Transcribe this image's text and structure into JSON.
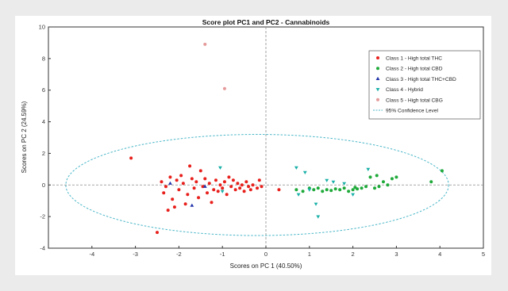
{
  "chart_data": {
    "type": "scatter",
    "title": "Score plot PC1 and PC2 - Cannabinoids",
    "xlabel": "Scores on PC 1 (40.50%)",
    "ylabel": "Scores on PC 2 (24.59%)",
    "xlim": [
      -5,
      5
    ],
    "ylim": [
      -4,
      10
    ],
    "xticks": [
      -4,
      -3,
      -2,
      -1,
      0,
      1,
      2,
      3,
      4,
      5
    ],
    "yticks": [
      -4,
      -2,
      0,
      2,
      4,
      6,
      8,
      10
    ],
    "grid": false,
    "legend_position": "top-right",
    "reference_lines": {
      "x": 0,
      "y": 0
    },
    "series": [
      {
        "name": "Class 1 - High total THC",
        "color": "#e8201c",
        "marker": "dot",
        "points": [
          [
            -3.1,
            1.7
          ],
          [
            -2.5,
            -3.0
          ],
          [
            -2.4,
            0.2
          ],
          [
            -2.35,
            -0.5
          ],
          [
            -2.3,
            -0.1
          ],
          [
            -2.25,
            -1.6
          ],
          [
            -2.2,
            0.5
          ],
          [
            -2.15,
            -0.9
          ],
          [
            -2.1,
            -1.4
          ],
          [
            -2.05,
            0.3
          ],
          [
            -2.0,
            -0.3
          ],
          [
            -1.95,
            0.6
          ],
          [
            -1.9,
            0.1
          ],
          [
            -1.85,
            -1.2
          ],
          [
            -1.8,
            -0.6
          ],
          [
            -1.75,
            1.2
          ],
          [
            -1.7,
            0.4
          ],
          [
            -1.65,
            -0.2
          ],
          [
            -1.6,
            0.2
          ],
          [
            -1.55,
            -0.8
          ],
          [
            -1.5,
            0.9
          ],
          [
            -1.45,
            -0.1
          ],
          [
            -1.4,
            0.4
          ],
          [
            -1.35,
            -0.5
          ],
          [
            -1.3,
            0.1
          ],
          [
            -1.25,
            -1.1
          ],
          [
            -1.2,
            -0.3
          ],
          [
            -1.15,
            0.3
          ],
          [
            -1.1,
            -0.4
          ],
          [
            -1.05,
            0.0
          ],
          [
            -1.0,
            -0.2
          ],
          [
            -0.95,
            0.2
          ],
          [
            -0.9,
            -0.6
          ],
          [
            -0.85,
            0.5
          ],
          [
            -0.8,
            -0.1
          ],
          [
            -0.75,
            0.3
          ],
          [
            -0.7,
            -0.3
          ],
          [
            -0.65,
            0.1
          ],
          [
            -0.6,
            -0.2
          ],
          [
            -0.55,
            0.0
          ],
          [
            -0.5,
            -0.4
          ],
          [
            -0.45,
            0.2
          ],
          [
            -0.4,
            -0.1
          ],
          [
            -0.35,
            -0.3
          ],
          [
            -0.3,
            0.0
          ],
          [
            -0.2,
            -0.2
          ],
          [
            -0.15,
            0.3
          ],
          [
            -0.1,
            -0.1
          ],
          [
            0.3,
            -0.3
          ]
        ]
      },
      {
        "name": "Class 2 - High total CBD",
        "color": "#1faa3a",
        "marker": "dot",
        "points": [
          [
            0.7,
            -0.3
          ],
          [
            0.85,
            -0.4
          ],
          [
            1.0,
            -0.2
          ],
          [
            1.1,
            -0.3
          ],
          [
            1.2,
            -0.2
          ],
          [
            1.3,
            -0.4
          ],
          [
            1.4,
            -0.3
          ],
          [
            1.5,
            -0.35
          ],
          [
            1.6,
            -0.25
          ],
          [
            1.7,
            -0.3
          ],
          [
            1.8,
            -0.2
          ],
          [
            1.9,
            -0.4
          ],
          [
            2.0,
            -0.3
          ],
          [
            2.05,
            -0.15
          ],
          [
            2.1,
            -0.25
          ],
          [
            2.2,
            -0.2
          ],
          [
            2.3,
            -0.1
          ],
          [
            2.4,
            0.5
          ],
          [
            2.5,
            -0.2
          ],
          [
            2.55,
            0.6
          ],
          [
            2.6,
            -0.1
          ],
          [
            2.7,
            0.2
          ],
          [
            2.8,
            0.0
          ],
          [
            2.9,
            0.4
          ],
          [
            3.0,
            0.5
          ],
          [
            3.8,
            0.2
          ],
          [
            4.05,
            0.9
          ]
        ]
      },
      {
        "name": "Class 3 - High total THC+CBD",
        "color": "#2233aa",
        "marker": "triangle",
        "points": [
          [
            -2.2,
            0.1
          ],
          [
            -1.7,
            -1.3
          ],
          [
            -1.4,
            -0.1
          ]
        ]
      },
      {
        "name": "Class 4 - Hybrid",
        "color": "#1ab0a8",
        "marker": "triangle-down",
        "points": [
          [
            -1.05,
            1.1
          ],
          [
            -1.0,
            -0.4
          ],
          [
            0.7,
            1.1
          ],
          [
            0.75,
            -0.6
          ],
          [
            0.9,
            0.8
          ],
          [
            1.0,
            -0.3
          ],
          [
            1.15,
            -1.2
          ],
          [
            1.2,
            -2.0
          ],
          [
            1.4,
            0.3
          ],
          [
            1.55,
            0.2
          ],
          [
            1.8,
            0.1
          ],
          [
            2.0,
            -0.6
          ],
          [
            2.35,
            1.0
          ]
        ]
      },
      {
        "name": "Class 5 - High total CBG",
        "color": "#e49a9a",
        "marker": "dot",
        "points": [
          [
            -1.4,
            8.9
          ],
          [
            -0.95,
            6.1
          ]
        ]
      },
      {
        "name": "95% Confidence Level",
        "color": "#49b6c8",
        "marker": "dashed-line",
        "ellipse": {
          "cx": -0.2,
          "cy": 0.0,
          "rx": 4.4,
          "ry": 3.2
        }
      }
    ]
  }
}
